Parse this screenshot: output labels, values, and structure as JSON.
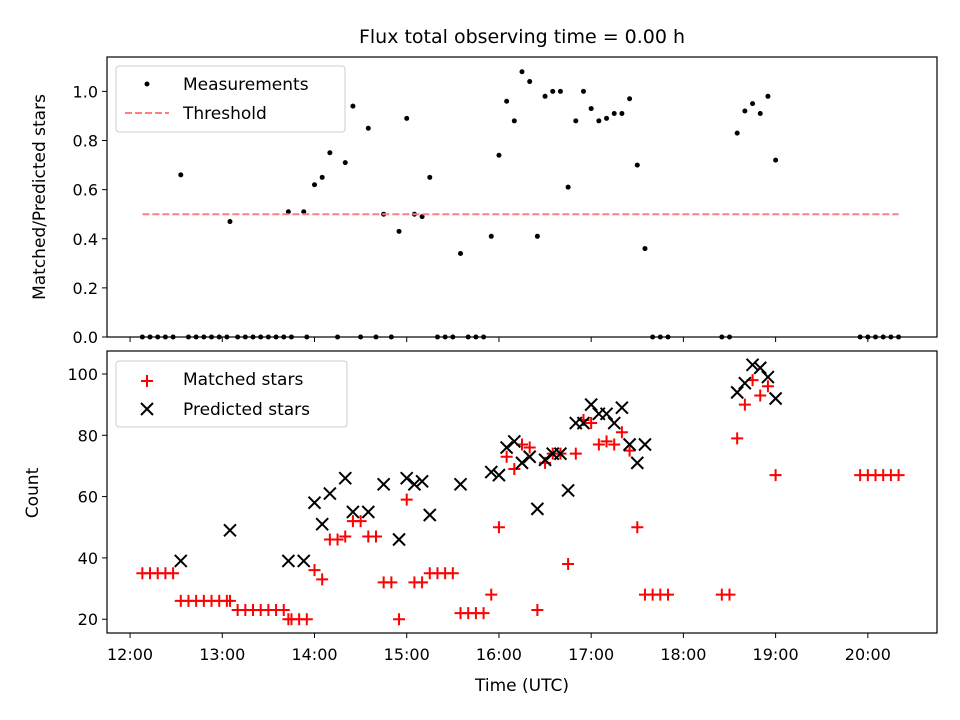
{
  "chart_data": [
    {
      "type": "scatter",
      "title": "Flux total observing time = 0.00 h",
      "xlabel": "",
      "ylabel": "Matched/Predicted stars",
      "xlim": [
        "11:45",
        "20:45"
      ],
      "ylim": [
        0,
        1.14
      ],
      "yticks": [
        "0.0",
        "0.2",
        "0.4",
        "0.6",
        "0.8",
        "1.0"
      ],
      "legend_position": "top-left",
      "grid": false,
      "series": [
        {
          "name": "Measurements",
          "marker": "dot",
          "color": "#000000",
          "points": [
            [
              "12:08",
              0
            ],
            [
              "12:13",
              0
            ],
            [
              "12:18",
              0
            ],
            [
              "12:23",
              0
            ],
            [
              "12:28",
              0
            ],
            [
              "12:33",
              0.66
            ],
            [
              "12:38",
              0
            ],
            [
              "12:43",
              0
            ],
            [
              "12:48",
              0
            ],
            [
              "12:53",
              0
            ],
            [
              "12:58",
              0
            ],
            [
              "13:03",
              0
            ],
            [
              "13:05",
              0.47
            ],
            [
              "13:10",
              0
            ],
            [
              "13:15",
              0
            ],
            [
              "13:20",
              0
            ],
            [
              "13:25",
              0
            ],
            [
              "13:30",
              0
            ],
            [
              "13:35",
              0
            ],
            [
              "13:40",
              0
            ],
            [
              "13:43",
              0.51
            ],
            [
              "13:45",
              0
            ],
            [
              "13:53",
              0.51
            ],
            [
              "13:55",
              0
            ],
            [
              "14:00",
              0.62
            ],
            [
              "14:05",
              0.65
            ],
            [
              "14:10",
              0.75
            ],
            [
              "14:15",
              0
            ],
            [
              "14:20",
              0.71
            ],
            [
              "14:25",
              0.94
            ],
            [
              "14:30",
              0
            ],
            [
              "14:35",
              0.85
            ],
            [
              "14:40",
              0
            ],
            [
              "14:45",
              0.5
            ],
            [
              "14:50",
              0
            ],
            [
              "14:55",
              0.43
            ],
            [
              "15:00",
              0.89
            ],
            [
              "15:05",
              0.5
            ],
            [
              "15:10",
              0.49
            ],
            [
              "15:15",
              0.65
            ],
            [
              "15:20",
              0
            ],
            [
              "15:25",
              0
            ],
            [
              "15:30",
              0
            ],
            [
              "15:35",
              0.34
            ],
            [
              "15:40",
              0
            ],
            [
              "15:45",
              0
            ],
            [
              "15:50",
              0
            ],
            [
              "15:55",
              0.41
            ],
            [
              "16:00",
              0.74
            ],
            [
              "16:05",
              0.96
            ],
            [
              "16:10",
              0.88
            ],
            [
              "16:15",
              1.08
            ],
            [
              "16:20",
              1.04
            ],
            [
              "16:25",
              0.41
            ],
            [
              "16:30",
              0.98
            ],
            [
              "16:35",
              1.0
            ],
            [
              "16:40",
              1.0
            ],
            [
              "16:45",
              0.61
            ],
            [
              "16:50",
              0.88
            ],
            [
              "16:55",
              1.0
            ],
            [
              "17:00",
              0.93
            ],
            [
              "17:05",
              0.88
            ],
            [
              "17:10",
              0.89
            ],
            [
              "17:15",
              0.91
            ],
            [
              "17:20",
              0.91
            ],
            [
              "17:25",
              0.97
            ],
            [
              "17:30",
              0.7
            ],
            [
              "17:35",
              0.36
            ],
            [
              "17:40",
              0
            ],
            [
              "17:45",
              0
            ],
            [
              "17:50",
              0
            ],
            [
              "18:25",
              0
            ],
            [
              "18:30",
              0
            ],
            [
              "18:35",
              0.83
            ],
            [
              "18:40",
              0.92
            ],
            [
              "18:45",
              0.95
            ],
            [
              "18:50",
              0.91
            ],
            [
              "18:55",
              0.98
            ],
            [
              "19:00",
              0.72
            ],
            [
              "19:55",
              0
            ],
            [
              "20:00",
              0
            ],
            [
              "20:05",
              0
            ],
            [
              "20:10",
              0
            ],
            [
              "20:15",
              0
            ],
            [
              "20:20",
              0
            ]
          ]
        },
        {
          "name": "Threshold",
          "marker": "dashed-line",
          "color": "#ff7f7f",
          "points": [
            [
              "12:08",
              0.5
            ],
            [
              "20:20",
              0.5
            ]
          ]
        }
      ]
    },
    {
      "type": "scatter",
      "title": "",
      "xlabel": "Time (UTC)",
      "ylabel": "Count",
      "xlim": [
        "11:45",
        "20:45"
      ],
      "ylim": [
        15.5,
        107.5
      ],
      "yticks": [
        "20",
        "40",
        "60",
        "80",
        "100"
      ],
      "xticks": [
        "12:00",
        "13:00",
        "14:00",
        "15:00",
        "16:00",
        "17:00",
        "18:00",
        "19:00",
        "20:00"
      ],
      "legend_position": "top-left",
      "grid": false,
      "series": [
        {
          "name": "Matched stars",
          "marker": "plus",
          "color": "#ff0000",
          "points": [
            [
              "12:08",
              35
            ],
            [
              "12:13",
              35
            ],
            [
              "12:18",
              35
            ],
            [
              "12:23",
              35
            ],
            [
              "12:28",
              35
            ],
            [
              "12:33",
              26
            ],
            [
              "12:38",
              26
            ],
            [
              "12:43",
              26
            ],
            [
              "12:48",
              26
            ],
            [
              "12:53",
              26
            ],
            [
              "12:58",
              26
            ],
            [
              "13:03",
              26
            ],
            [
              "13:05",
              26
            ],
            [
              "13:10",
              23
            ],
            [
              "13:15",
              23
            ],
            [
              "13:20",
              23
            ],
            [
              "13:25",
              23
            ],
            [
              "13:30",
              23
            ],
            [
              "13:35",
              23
            ],
            [
              "13:40",
              23
            ],
            [
              "13:43",
              20
            ],
            [
              "13:45",
              20
            ],
            [
              "13:50",
              20
            ],
            [
              "13:55",
              20
            ],
            [
              "14:00",
              36
            ],
            [
              "14:05",
              33
            ],
            [
              "14:10",
              46
            ],
            [
              "14:15",
              46
            ],
            [
              "14:20",
              47
            ],
            [
              "14:25",
              52
            ],
            [
              "14:30",
              52
            ],
            [
              "14:35",
              47
            ],
            [
              "14:40",
              47
            ],
            [
              "14:45",
              32
            ],
            [
              "14:50",
              32
            ],
            [
              "14:55",
              20
            ],
            [
              "15:00",
              59
            ],
            [
              "15:05",
              32
            ],
            [
              "15:10",
              32
            ],
            [
              "15:15",
              35
            ],
            [
              "15:20",
              35
            ],
            [
              "15:25",
              35
            ],
            [
              "15:30",
              35
            ],
            [
              "15:35",
              22
            ],
            [
              "15:40",
              22
            ],
            [
              "15:45",
              22
            ],
            [
              "15:50",
              22
            ],
            [
              "15:55",
              28
            ],
            [
              "16:00",
              50
            ],
            [
              "16:05",
              73
            ],
            [
              "16:10",
              69
            ],
            [
              "16:15",
              77
            ],
            [
              "16:20",
              76
            ],
            [
              "16:25",
              23
            ],
            [
              "16:30",
              71
            ],
            [
              "16:35",
              74
            ],
            [
              "16:40",
              74
            ],
            [
              "16:45",
              38
            ],
            [
              "16:50",
              74
            ],
            [
              "16:55",
              85
            ],
            [
              "17:00",
              84
            ],
            [
              "17:05",
              77
            ],
            [
              "17:10",
              78
            ],
            [
              "17:15",
              77
            ],
            [
              "17:20",
              81
            ],
            [
              "17:25",
              75
            ],
            [
              "17:30",
              50
            ],
            [
              "17:35",
              28
            ],
            [
              "17:40",
              28
            ],
            [
              "17:45",
              28
            ],
            [
              "17:50",
              28
            ],
            [
              "18:25",
              28
            ],
            [
              "18:30",
              28
            ],
            [
              "18:35",
              79
            ],
            [
              "18:40",
              90
            ],
            [
              "18:45",
              98
            ],
            [
              "18:50",
              93
            ],
            [
              "18:55",
              96
            ],
            [
              "19:00",
              67
            ],
            [
              "19:55",
              67
            ],
            [
              "20:00",
              67
            ],
            [
              "20:05",
              67
            ],
            [
              "20:10",
              67
            ],
            [
              "20:15",
              67
            ],
            [
              "20:20",
              67
            ]
          ]
        },
        {
          "name": "Predicted stars",
          "marker": "x",
          "color": "#000000",
          "points": [
            [
              "12:33",
              39
            ],
            [
              "13:05",
              49
            ],
            [
              "13:43",
              39
            ],
            [
              "13:53",
              39
            ],
            [
              "14:00",
              58
            ],
            [
              "14:05",
              51
            ],
            [
              "14:10",
              61
            ],
            [
              "14:20",
              66
            ],
            [
              "14:25",
              55
            ],
            [
              "14:35",
              55
            ],
            [
              "14:45",
              64
            ],
            [
              "14:55",
              46
            ],
            [
              "15:00",
              66
            ],
            [
              "15:05",
              64
            ],
            [
              "15:10",
              65
            ],
            [
              "15:15",
              54
            ],
            [
              "15:35",
              64
            ],
            [
              "15:55",
              68
            ],
            [
              "16:00",
              67
            ],
            [
              "16:05",
              76
            ],
            [
              "16:10",
              78
            ],
            [
              "16:15",
              71
            ],
            [
              "16:20",
              73
            ],
            [
              "16:25",
              56
            ],
            [
              "16:30",
              72
            ],
            [
              "16:35",
              74
            ],
            [
              "16:40",
              74
            ],
            [
              "16:45",
              62
            ],
            [
              "16:50",
              84
            ],
            [
              "16:55",
              84
            ],
            [
              "17:00",
              90
            ],
            [
              "17:05",
              87
            ],
            [
              "17:10",
              87
            ],
            [
              "17:15",
              84
            ],
            [
              "17:20",
              89
            ],
            [
              "17:25",
              77
            ],
            [
              "17:30",
              71
            ],
            [
              "17:35",
              77
            ],
            [
              "18:35",
              94
            ],
            [
              "18:40",
              97
            ],
            [
              "18:45",
              103
            ],
            [
              "18:50",
              102
            ],
            [
              "18:55",
              99
            ],
            [
              "19:00",
              92
            ]
          ]
        }
      ]
    }
  ]
}
